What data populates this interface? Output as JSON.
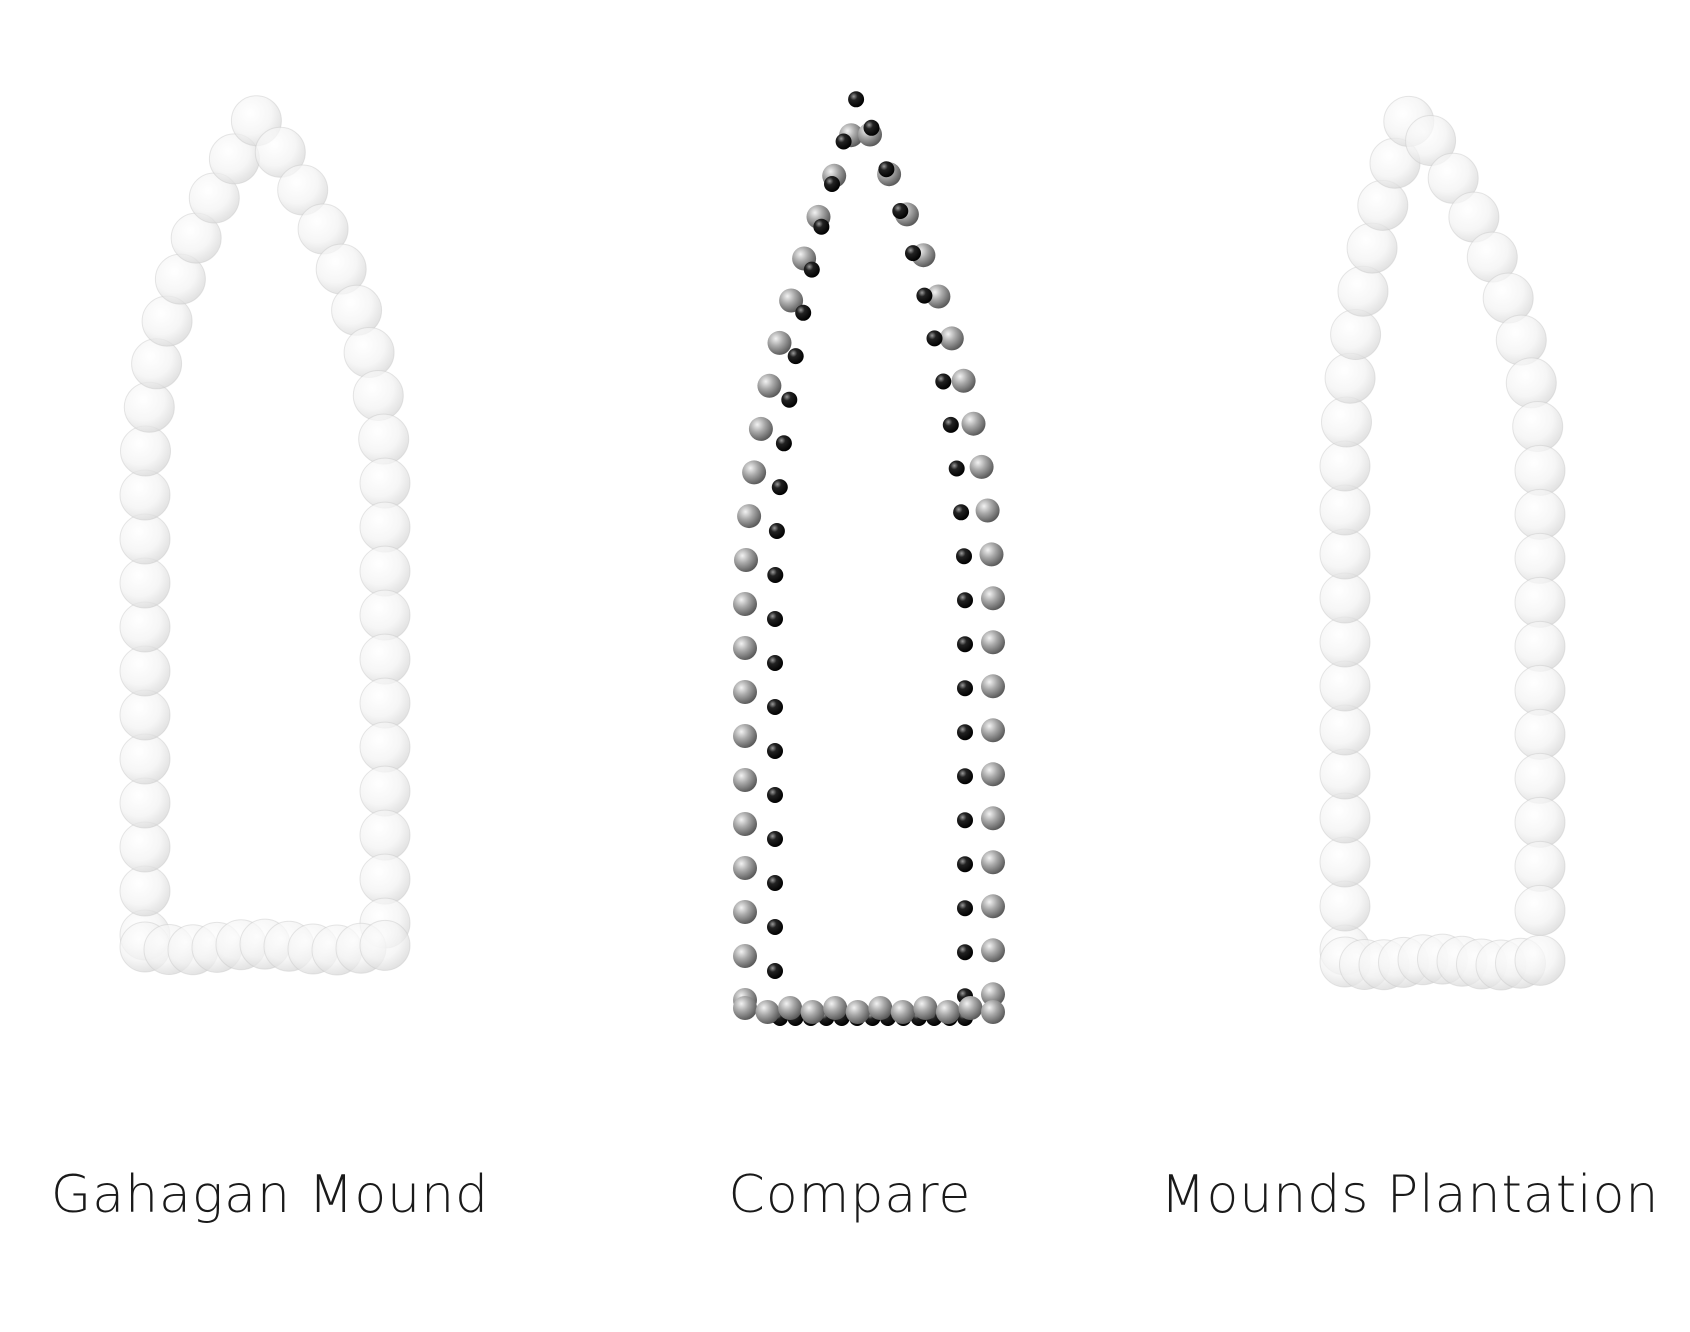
{
  "labels": {
    "left": "Gahagan Mound",
    "middle": "Compare",
    "right": "Mounds Plantation"
  },
  "colors": {
    "light_bead": "#eeeeee",
    "grey_bead": "#9a9a9a",
    "dark_bead": "#111111"
  }
}
